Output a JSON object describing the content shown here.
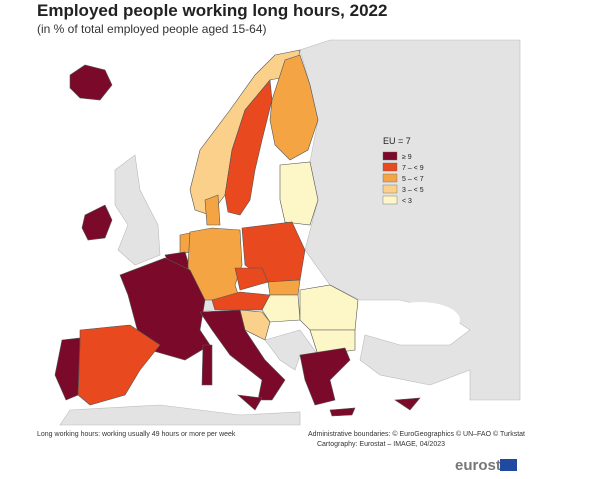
{
  "header": {
    "title": "Employed people working long hours, 2022",
    "subtitle": "(in % of total employed people aged 15-64)"
  },
  "legend": {
    "title": "EU = 7",
    "items": [
      {
        "label": "≥ 9",
        "color": "#7b0a2a"
      },
      {
        "label": "7 – < 9",
        "color": "#e8491e"
      },
      {
        "label": "5 – < 7",
        "color": "#f4a442"
      },
      {
        "label": "3 – < 5",
        "color": "#fbd08a"
      },
      {
        "label": "< 3",
        "color": "#fdf7c8"
      }
    ]
  },
  "footer": {
    "note": "Long working hours: working usually 49 hours or more per week",
    "boundaries": "Administrative boundaries: © EuroGeographics © UN–FAO © Turkstat",
    "cartography": "Cartography: Eurostat – IMAGE, 04/2023",
    "logo": "eurostat"
  }
}
